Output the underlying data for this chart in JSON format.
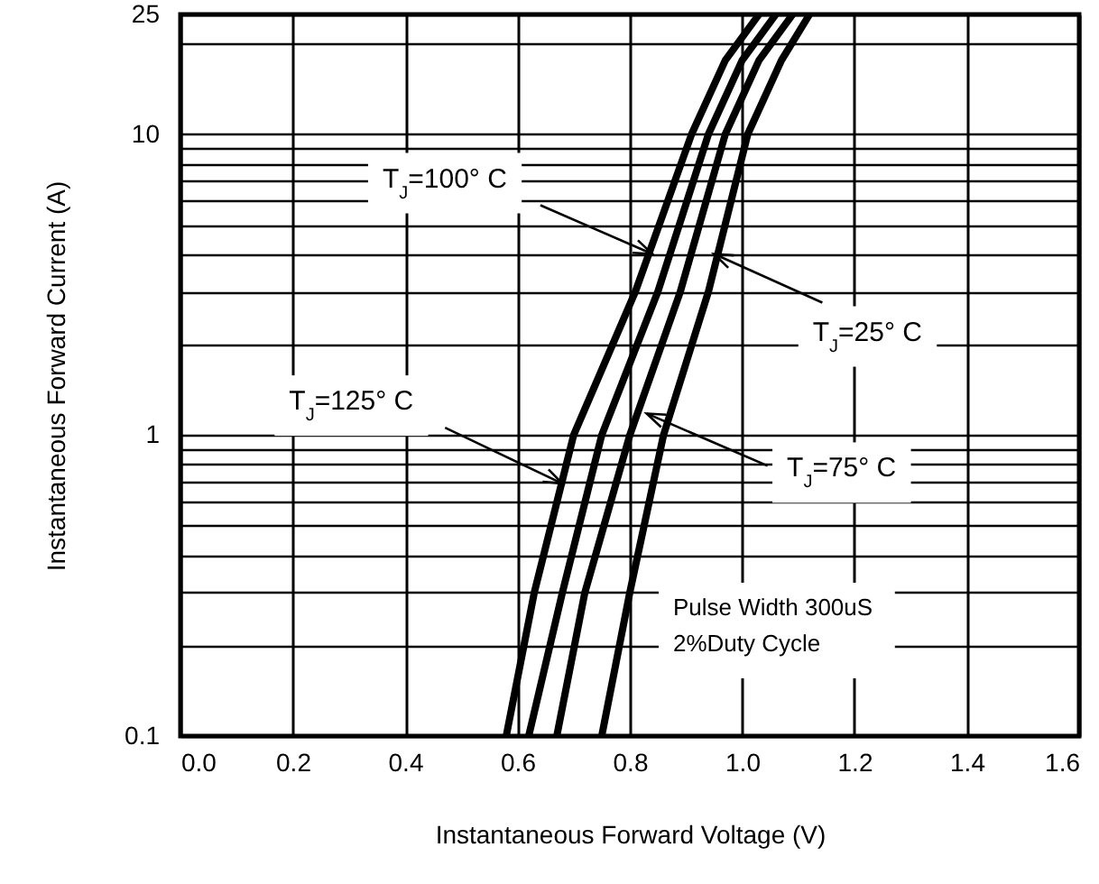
{
  "chart_data": {
    "type": "line",
    "xlabel": "Instantaneous Forward Voltage (V)",
    "ylabel": "Instantaneous Forward Current (A)",
    "log": "y",
    "grid": true,
    "line_style": "solid",
    "xlim": [
      0,
      1.6
    ],
    "xticks": [
      {
        "value": 0,
        "label": "0.0"
      },
      0.2,
      0.4,
      0.6,
      0.8,
      {
        "value": 1,
        "label": "1.0"
      },
      1.2,
      1.4,
      1.6
    ],
    "ylim": [
      0.1,
      25
    ],
    "yticks": [
      0.1,
      {
        "value": 0.2,
        "label": null
      },
      {
        "value": 0.3,
        "label": null
      },
      {
        "value": 0.4,
        "label": null
      },
      {
        "value": 0.5,
        "label": null
      },
      {
        "value": 0.6,
        "label": null
      },
      {
        "value": 0.7,
        "label": null
      },
      {
        "value": 0.8,
        "label": null
      },
      {
        "value": 0.9,
        "label": null
      },
      1,
      {
        "value": 2,
        "label": null
      },
      {
        "value": 3,
        "label": null
      },
      {
        "value": 4,
        "label": null
      },
      {
        "value": 5,
        "label": null
      },
      {
        "value": 6,
        "label": null
      },
      {
        "value": 7,
        "label": null
      },
      {
        "value": 8,
        "label": null
      },
      {
        "value": 9,
        "label": null
      },
      10,
      {
        "value": 20,
        "label": null
      },
      25
    ],
    "series": [
      {
        "color": "#000000",
        "x": [
          0.58,
          0.63,
          0.7,
          0.81,
          0.91,
          0.97,
          1.03
        ],
        "values": [
          0.1,
          0.3,
          1,
          3,
          10,
          17.6,
          25
        ]
      },
      {
        "color": "#000000",
        "x": [
          0.62,
          0.68,
          0.75,
          0.85,
          0.94,
          1.0,
          1.06
        ],
        "values": [
          0.1,
          0.3,
          1,
          3,
          10,
          17.6,
          25
        ]
      },
      {
        "color": "#000000",
        "x": [
          0.67,
          0.72,
          0.8,
          0.89,
          0.97,
          1.03,
          1.09
        ],
        "values": [
          0.1,
          0.3,
          1,
          3,
          10,
          17.6,
          25
        ]
      },
      {
        "color": "#000000",
        "x": [
          0.75,
          0.8,
          0.86,
          0.94,
          1.01,
          1.07,
          1.12
        ],
        "values": [
          0.1,
          0.3,
          1,
          3,
          10,
          17.6,
          25
        ]
      }
    ],
    "annotations": [
      {
        "text": "T$_{J}$=100° C",
        "x": 0.84,
        "y": 4
      },
      {
        "text": "T$_{J}$=25° C",
        "x": 0.95,
        "y": 4
      },
      {
        "text": "T$_{J}$=125° C",
        "x": 0.68,
        "y": 0.69
      },
      {
        "text": "T$_{J}$=75° C",
        "x": 0.83,
        "y": 1.18
      },
      "Pulse Width 300uS",
      "2%Duty Cycle"
    ]
  }
}
